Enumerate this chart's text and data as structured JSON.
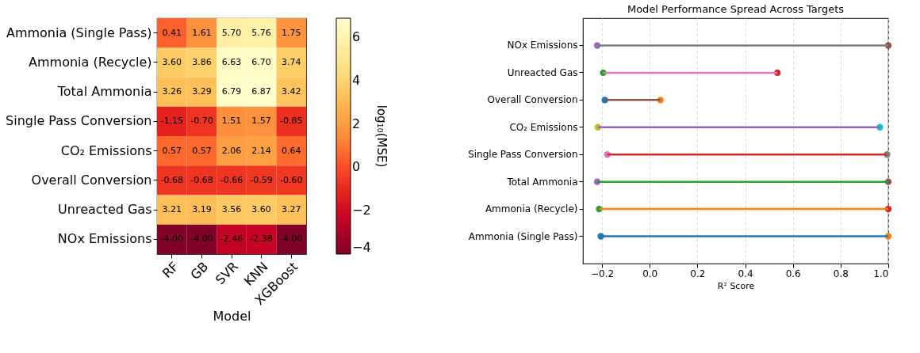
{
  "chart_data": [
    {
      "type": "heatmap",
      "xlabel": "Model",
      "clabel": "log₁₀(MSE)",
      "data_labels": true,
      "categories": [
        "RF",
        "GB",
        "SVR",
        "KNN",
        "XGBoost"
      ],
      "y_categories": [
        "Ammonia (Single Pass)",
        "Ammonia (Recycle)",
        "Total Ammonia",
        "Single Pass Conversion",
        "CO₂ Emissions",
        "Overall Conversion",
        "Unreacted Gas",
        "NOx Emissions"
      ],
      "cells": [
        [
          0.41,
          1.61,
          5.7,
          5.76,
          1.75
        ],
        [
          3.6,
          3.86,
          6.63,
          6.7,
          3.74
        ],
        [
          3.26,
          3.29,
          6.79,
          6.87,
          3.42
        ],
        [
          -1.15,
          -0.7,
          1.51,
          1.57,
          -0.85
        ],
        [
          0.57,
          0.57,
          2.06,
          2.14,
          0.64
        ],
        [
          -0.68,
          -0.68,
          -0.66,
          -0.59,
          -0.6
        ],
        [
          3.21,
          3.19,
          3.56,
          3.6,
          3.27
        ],
        [
          -4.0,
          -4.0,
          -2.46,
          -2.38,
          -4.0
        ]
      ],
      "cell_labels": [
        [
          "0.41",
          "1.61",
          "5.70",
          "5.76",
          "1.75"
        ],
        [
          "3.60",
          "3.86",
          "6.63",
          "6.70",
          "3.74"
        ],
        [
          "3.26",
          "3.29",
          "6.79",
          "6.87",
          "3.42"
        ],
        [
          "-1.15",
          "-0.70",
          "1.51",
          "1.57",
          "-0.85"
        ],
        [
          "0.57",
          "0.57",
          "2.06",
          "2.14",
          "0.64"
        ],
        [
          "-0.68",
          "-0.68",
          "-0.66",
          "-0.59",
          "-0.60"
        ],
        [
          "3.21",
          "3.19",
          "3.56",
          "3.60",
          "3.27"
        ],
        [
          "-4.00",
          "-4.00",
          "-2.46",
          "-2.38",
          "-4.00"
        ]
      ],
      "clim": [
        -4.0,
        6.87
      ],
      "cticks": [
        -4,
        -2,
        0,
        2,
        4,
        6
      ]
    },
    {
      "type": "bar",
      "orientation": "horizontal",
      "title": "Model Performance Spread Across Targets",
      "xlabel": "R² Score",
      "categories": [
        "NOx Emissions",
        "Unreacted Gas",
        "Overall Conversion",
        "CO₂ Emissions",
        "Single Pass Conversion",
        "Total Ammonia",
        "Ammonia (Recycle)",
        "Ammonia (Single Pass)"
      ],
      "series": [
        {
          "type": "bar",
          "base": [
            -0.22,
            -0.195,
            -0.188,
            -0.217,
            -0.178,
            -0.22,
            -0.212,
            -0.205
          ],
          "values": [
            1.22,
            0.73,
            0.233,
            1.182,
            1.173,
            1.22,
            1.212,
            1.205
          ],
          "colors": [
            "#7f7f7f",
            "#e377c2",
            "#8c564b",
            "#9467bd",
            "#d62728",
            "#2ca02c",
            "#ff7f0e",
            "#1f77b4"
          ]
        },
        {
          "type": "scatter",
          "values": [
            -0.22,
            -0.195,
            -0.188,
            -0.217,
            -0.178,
            -0.22,
            -0.212,
            -0.205
          ],
          "colors": [
            "#9467bd",
            "#2ca02c",
            "#1f77b4",
            "#bcbd22",
            "#e377c2",
            "#9467bd",
            "#2ca02c",
            "#1f77b4"
          ]
        },
        {
          "type": "scatter",
          "values": [
            1.0,
            0.535,
            0.045,
            0.965,
            0.995,
            1.0,
            1.0,
            1.0
          ],
          "colors": [
            "#8c564b",
            "#d62728",
            "#ff7f0e",
            "#17becf",
            "#7f7f7f",
            "#8c564b",
            "#d62728",
            "#ff7f0e"
          ]
        }
      ],
      "xlim": [
        -0.28,
        1.0
      ],
      "xticks": [
        -0.2,
        {
          "value": 0,
          "label": "0.0"
        },
        0.2,
        0.4,
        0.6,
        0.8,
        {
          "value": 1,
          "label": "1.0"
        }
      ],
      "grid": "x",
      "marker": "circle"
    }
  ]
}
